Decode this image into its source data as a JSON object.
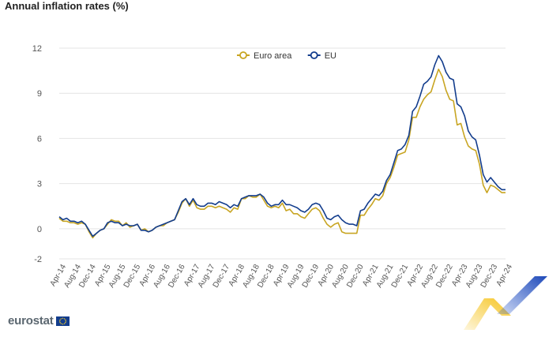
{
  "header": {
    "title": "Annual inflation rates (%)"
  },
  "brand": {
    "name": "eurostat"
  },
  "colors": {
    "euro_area": "#c8a522",
    "eu": "#133d8d",
    "grid": "#e4e4e4",
    "text": "#555555"
  },
  "chart_data": {
    "type": "line",
    "title": "Annual inflation rates (%)",
    "xlabel": "",
    "ylabel": "",
    "ylim": [
      -2,
      12
    ],
    "yticks": [
      -2,
      0,
      3,
      6,
      9,
      12
    ],
    "grid": true,
    "legend_position": "top-center",
    "x": [
      "Apr-14",
      "May-14",
      "Jun-14",
      "Jul-14",
      "Aug-14",
      "Sep-14",
      "Oct-14",
      "Nov-14",
      "Dec-14",
      "Jan-15",
      "Feb-15",
      "Mar-15",
      "Apr-15",
      "May-15",
      "Jun-15",
      "Jul-15",
      "Aug-15",
      "Sep-15",
      "Oct-15",
      "Nov-15",
      "Dec-15",
      "Jan-16",
      "Feb-16",
      "Mar-16",
      "Apr-16",
      "May-16",
      "Jun-16",
      "Jul-16",
      "Aug-16",
      "Sep-16",
      "Oct-16",
      "Nov-16",
      "Dec-16",
      "Jan-17",
      "Feb-17",
      "Mar-17",
      "Apr-17",
      "May-17",
      "Jun-17",
      "Jul-17",
      "Aug-17",
      "Sep-17",
      "Oct-17",
      "Nov-17",
      "Dec-17",
      "Jan-18",
      "Feb-18",
      "Mar-18",
      "Apr-18",
      "May-18",
      "Jun-18",
      "Jul-18",
      "Aug-18",
      "Sep-18",
      "Oct-18",
      "Nov-18",
      "Dec-18",
      "Jan-19",
      "Feb-19",
      "Mar-19",
      "Apr-19",
      "May-19",
      "Jun-19",
      "Jul-19",
      "Aug-19",
      "Sep-19",
      "Oct-19",
      "Nov-19",
      "Dec-19",
      "Jan-20",
      "Feb-20",
      "Mar-20",
      "Apr-20",
      "May-20",
      "Jun-20",
      "Jul-20",
      "Aug-20",
      "Sep-20",
      "Oct-20",
      "Nov-20",
      "Dec-20",
      "Jan-21",
      "Feb-21",
      "Mar-21",
      "Apr-21",
      "May-21",
      "Jun-21",
      "Jul-21",
      "Aug-21",
      "Sep-21",
      "Oct-21",
      "Nov-21",
      "Dec-21",
      "Jan-22",
      "Feb-22",
      "Mar-22",
      "Apr-22",
      "May-22",
      "Jun-22",
      "Jul-22",
      "Aug-22",
      "Sep-22",
      "Oct-22",
      "Nov-22",
      "Dec-22",
      "Jan-23",
      "Feb-23",
      "Mar-23",
      "Apr-23",
      "May-23",
      "Jun-23",
      "Jul-23",
      "Aug-23",
      "Sep-23",
      "Oct-23",
      "Nov-23",
      "Dec-23",
      "Jan-24",
      "Feb-24",
      "Mar-24",
      "Apr-24"
    ],
    "tick_labels": [
      "Apr-14",
      "Aug-14",
      "Dec-14",
      "Apr-15",
      "Aug-15",
      "Dec-15",
      "Apr-16",
      "Aug-16",
      "Dec-16",
      "Apr-17",
      "Aug-17",
      "Dec-17",
      "Apr-18",
      "Aug-18",
      "Dec-18",
      "Apr-19",
      "Aug-19",
      "Dec-19",
      "Apr-20",
      "Aug-20",
      "Dec-20",
      "Apr-21",
      "Aug-21",
      "Dec-21",
      "Apr-22",
      "Aug-22",
      "Dec-22",
      "Apr-23",
      "Aug-23",
      "Dec-23",
      "Apr-24"
    ],
    "series": [
      {
        "name": "Euro area",
        "color": "#c8a522",
        "values": [
          0.7,
          0.5,
          0.5,
          0.4,
          0.4,
          0.3,
          0.4,
          0.3,
          -0.2,
          -0.6,
          -0.3,
          -0.1,
          0.0,
          0.3,
          0.6,
          0.5,
          0.5,
          0.2,
          0.4,
          0.1,
          0.2,
          0.3,
          -0.1,
          0.0,
          -0.2,
          -0.1,
          0.1,
          0.2,
          0.2,
          0.4,
          0.5,
          0.6,
          1.1,
          1.7,
          2.0,
          1.5,
          1.9,
          1.4,
          1.3,
          1.3,
          1.5,
          1.5,
          1.4,
          1.5,
          1.4,
          1.3,
          1.1,
          1.4,
          1.3,
          2.0,
          2.0,
          2.2,
          2.1,
          2.1,
          2.3,
          1.9,
          1.5,
          1.4,
          1.5,
          1.4,
          1.7,
          1.2,
          1.3,
          1.0,
          1.0,
          0.8,
          0.7,
          1.0,
          1.3,
          1.4,
          1.2,
          0.7,
          0.3,
          0.1,
          0.3,
          0.4,
          -0.2,
          -0.3,
          -0.3,
          -0.3,
          -0.3,
          0.9,
          0.9,
          1.3,
          1.6,
          2.0,
          1.9,
          2.2,
          3.0,
          3.4,
          4.1,
          4.9,
          5.0,
          5.1,
          5.9,
          7.4,
          7.4,
          8.1,
          8.6,
          8.9,
          9.1,
          9.9,
          10.6,
          10.1,
          9.2,
          8.6,
          8.5,
          6.9,
          7.0,
          6.1,
          5.5,
          5.3,
          5.2,
          4.3,
          2.9,
          2.4,
          2.9,
          2.8,
          2.6,
          2.4,
          2.4
        ]
      },
      {
        "name": "EU",
        "color": "#133d8d",
        "values": [
          0.8,
          0.6,
          0.7,
          0.5,
          0.5,
          0.4,
          0.5,
          0.3,
          -0.1,
          -0.5,
          -0.3,
          -0.1,
          0.0,
          0.4,
          0.5,
          0.4,
          0.4,
          0.2,
          0.3,
          0.2,
          0.2,
          0.3,
          -0.1,
          -0.1,
          -0.2,
          -0.1,
          0.1,
          0.2,
          0.3,
          0.4,
          0.5,
          0.6,
          1.2,
          1.8,
          2.0,
          1.6,
          2.0,
          1.6,
          1.5,
          1.5,
          1.7,
          1.7,
          1.6,
          1.8,
          1.7,
          1.6,
          1.4,
          1.6,
          1.5,
          2.0,
          2.1,
          2.2,
          2.2,
          2.2,
          2.3,
          2.1,
          1.7,
          1.5,
          1.6,
          1.6,
          1.9,
          1.6,
          1.6,
          1.5,
          1.4,
          1.2,
          1.1,
          1.3,
          1.6,
          1.7,
          1.6,
          1.2,
          0.7,
          0.6,
          0.8,
          0.9,
          0.6,
          0.4,
          0.3,
          0.3,
          0.2,
          1.2,
          1.3,
          1.7,
          2.0,
          2.3,
          2.2,
          2.5,
          3.2,
          3.6,
          4.4,
          5.2,
          5.3,
          5.6,
          6.2,
          7.8,
          8.1,
          8.8,
          9.6,
          9.8,
          10.1,
          10.9,
          11.5,
          11.1,
          10.4,
          10.0,
          9.9,
          8.3,
          8.1,
          7.5,
          6.5,
          6.1,
          5.9,
          4.9,
          3.6,
          3.1,
          3.4,
          3.1,
          2.8,
          2.6,
          2.6
        ]
      }
    ]
  }
}
